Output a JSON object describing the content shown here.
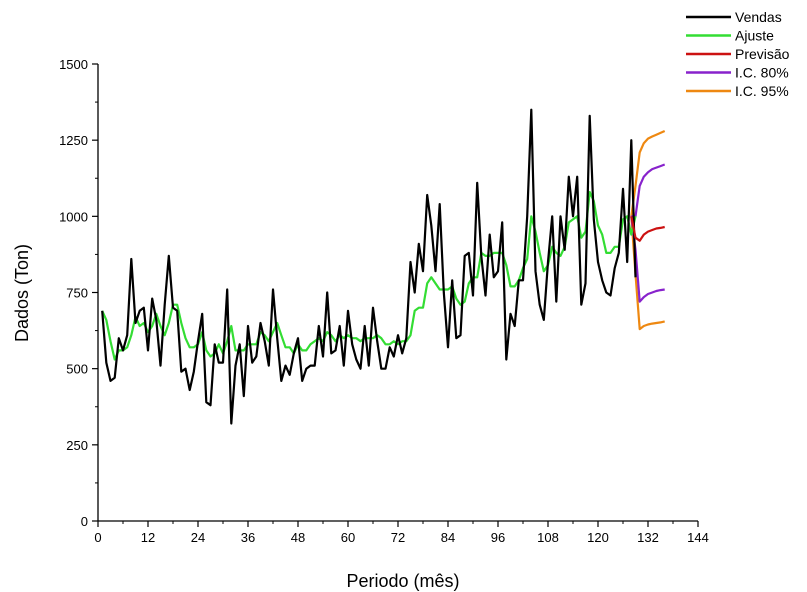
{
  "chart_data": {
    "type": "line",
    "xlabel": "Periodo (mês)",
    "ylabel": "Dados (Ton)",
    "xlim": [
      0,
      144
    ],
    "ylim": [
      0,
      1500
    ],
    "xticks": [
      0,
      12,
      24,
      36,
      48,
      60,
      72,
      84,
      96,
      108,
      120,
      132,
      144
    ],
    "yticks": [
      0,
      250,
      500,
      750,
      1000,
      1250,
      1500
    ],
    "legend_position": "top-right",
    "series": [
      {
        "name": "Vendas",
        "color": "#000000",
        "x": [
          1,
          2,
          3,
          4,
          5,
          6,
          7,
          8,
          9,
          10,
          11,
          12,
          13,
          14,
          15,
          16,
          17,
          18,
          19,
          20,
          21,
          22,
          23,
          24,
          25,
          26,
          27,
          28,
          29,
          30,
          31,
          32,
          33,
          34,
          35,
          36,
          37,
          38,
          39,
          40,
          41,
          42,
          43,
          44,
          45,
          46,
          47,
          48,
          49,
          50,
          51,
          52,
          53,
          54,
          55,
          56,
          57,
          58,
          59,
          60,
          61,
          62,
          63,
          64,
          65,
          66,
          67,
          68,
          69,
          70,
          71,
          72,
          73,
          74,
          75,
          76,
          77,
          78,
          79,
          80,
          81,
          82,
          83,
          84,
          85,
          86,
          87,
          88,
          89,
          90,
          91,
          92,
          93,
          94,
          95,
          96,
          97,
          98,
          99,
          100,
          101,
          102,
          103,
          104,
          105,
          106,
          107,
          108,
          109,
          110,
          111,
          112,
          113,
          114,
          115,
          116,
          117,
          118,
          119,
          120,
          121,
          122,
          123,
          124,
          125,
          126,
          127,
          128,
          129
        ],
        "y": [
          690,
          520,
          460,
          470,
          600,
          560,
          610,
          860,
          650,
          690,
          700,
          560,
          730,
          660,
          510,
          710,
          870,
          700,
          690,
          490,
          500,
          430,
          490,
          590,
          680,
          390,
          380,
          580,
          520,
          520,
          760,
          320,
          510,
          580,
          410,
          640,
          520,
          540,
          650,
          590,
          510,
          760,
          600,
          460,
          510,
          480,
          550,
          600,
          460,
          500,
          510,
          510,
          640,
          540,
          750,
          550,
          560,
          640,
          510,
          690,
          580,
          530,
          500,
          640,
          510,
          700,
          590,
          500,
          500,
          570,
          540,
          610,
          550,
          600,
          850,
          750,
          910,
          820,
          1070,
          970,
          820,
          1040,
          750,
          570,
          790,
          600,
          610,
          870,
          880,
          740,
          1110,
          870,
          740,
          940,
          800,
          820,
          980,
          530,
          680,
          640,
          790,
          790,
          1000,
          1350,
          820,
          710,
          660,
          850,
          1000,
          720,
          1000,
          890,
          1130,
          1000,
          1130,
          710,
          780,
          1330,
          990,
          850,
          790,
          750,
          740,
          830,
          880,
          1090,
          850,
          1250,
          800
        ]
      },
      {
        "name": "Ajuste",
        "color": "#33dd33",
        "x": [
          1,
          2,
          3,
          4,
          5,
          6,
          7,
          8,
          9,
          10,
          11,
          12,
          13,
          14,
          15,
          16,
          17,
          18,
          19,
          20,
          21,
          22,
          23,
          24,
          25,
          26,
          27,
          28,
          29,
          30,
          31,
          32,
          33,
          34,
          35,
          36,
          37,
          38,
          39,
          40,
          41,
          42,
          43,
          44,
          45,
          46,
          47,
          48,
          49,
          50,
          51,
          52,
          53,
          54,
          55,
          56,
          57,
          58,
          59,
          60,
          61,
          62,
          63,
          64,
          65,
          66,
          67,
          68,
          69,
          70,
          71,
          72,
          73,
          74,
          75,
          76,
          77,
          78,
          79,
          80,
          81,
          82,
          83,
          84,
          85,
          86,
          87,
          88,
          89,
          90,
          91,
          92,
          93,
          94,
          95,
          96,
          97,
          98,
          99,
          100,
          101,
          102,
          103,
          104,
          105,
          106,
          107,
          108,
          109,
          110,
          111,
          112,
          113,
          114,
          115,
          116,
          117,
          118,
          119,
          120,
          121,
          122,
          123,
          124,
          125,
          126,
          127,
          128,
          129
        ],
        "y": [
          690,
          660,
          590,
          530,
          560,
          560,
          570,
          610,
          670,
          640,
          650,
          620,
          640,
          680,
          640,
          610,
          650,
          710,
          710,
          650,
          600,
          570,
          570,
          580,
          620,
          560,
          540,
          550,
          580,
          550,
          590,
          640,
          560,
          560,
          560,
          580,
          580,
          580,
          620,
          610,
          590,
          620,
          650,
          610,
          570,
          570,
          550,
          580,
          560,
          560,
          580,
          590,
          600,
          590,
          620,
          610,
          590,
          610,
          600,
          610,
          600,
          600,
          590,
          600,
          600,
          600,
          610,
          600,
          580,
          580,
          590,
          580,
          590,
          590,
          610,
          690,
          700,
          700,
          780,
          800,
          780,
          760,
          760,
          760,
          770,
          730,
          710,
          720,
          780,
          800,
          800,
          880,
          870,
          870,
          880,
          880,
          880,
          840,
          770,
          770,
          790,
          830,
          860,
          1000,
          950,
          880,
          820,
          840,
          900,
          880,
          870,
          900,
          980,
          990,
          1000,
          930,
          950,
          1080,
          1050,
          970,
          940,
          880,
          880,
          900,
          900,
          990,
          1000,
          940,
          1000
        ]
      },
      {
        "name": "Previsão",
        "color": "#cc1111",
        "x": [
          128,
          129,
          130,
          131,
          132,
          133,
          134,
          135,
          136
        ],
        "y": [
          1000,
          930,
          920,
          940,
          950,
          955,
          960,
          962,
          965
        ]
      },
      {
        "name": "I.C. 80%",
        "color": "#8822cc",
        "x": [
          128,
          129,
          130,
          131,
          132,
          133,
          134,
          135,
          136
        ],
        "y": [
          1000,
          890,
          720,
          735,
          745,
          750,
          755,
          758,
          760
        ],
        "y_upper": [
          1000,
          1000,
          1100,
          1130,
          1145,
          1155,
          1160,
          1165,
          1170
        ]
      },
      {
        "name": "I.C. 95%",
        "color": "#ee8811",
        "x": [
          128,
          129,
          130,
          131,
          132,
          133,
          134,
          135,
          136
        ],
        "y": [
          1000,
          810,
          630,
          640,
          645,
          648,
          650,
          652,
          655
        ],
        "y_upper": [
          1000,
          1100,
          1210,
          1240,
          1255,
          1262,
          1268,
          1274,
          1280
        ]
      }
    ]
  }
}
